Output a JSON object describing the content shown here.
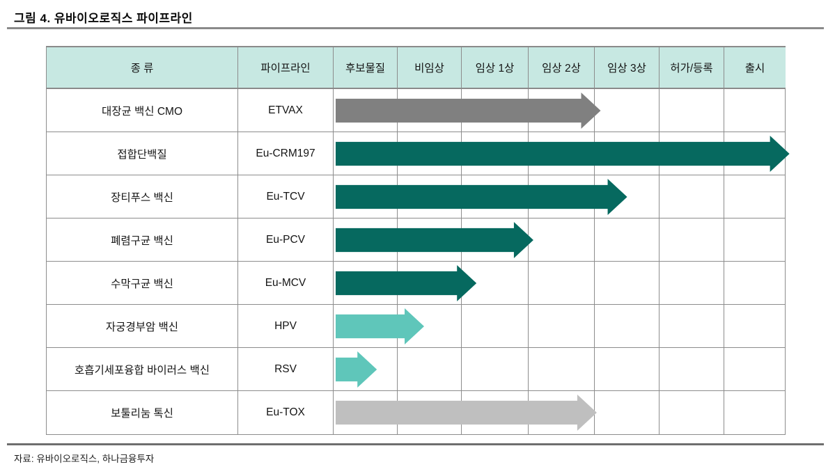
{
  "figure": {
    "title": "그림 4. 유바이오로직스 파이프라인",
    "source": "자료: 유바이오로직스, 하나금융투자"
  },
  "table": {
    "headers": [
      "종 류",
      "파이프라인",
      "후보물질",
      "비임상",
      "임상 1상",
      "임상 2상",
      "임상 3상",
      "허가/등록",
      "출시"
    ]
  },
  "colors": {
    "header_bg": "#C7E8E2",
    "grid": "#8C8C8C",
    "dark_teal": "#06695F",
    "light_teal": "#5FC6BA",
    "gray": "#808080",
    "light_gray": "#BFBFBF"
  },
  "chart_data": {
    "type": "gantt",
    "title": "유바이오로직스 파이프라인",
    "stages": [
      "후보물질",
      "비임상",
      "임상 1상",
      "임상 2상",
      "임상 3상",
      "허가/등록",
      "출시"
    ],
    "stage_axis_units": 7,
    "rows": [
      {
        "category": "대장균 백신 CMO",
        "pipeline": "ETVAX",
        "color": "gray",
        "end_stage_units": 4.13,
        "reached_stage": "임상 3상"
      },
      {
        "category": "접합단백질",
        "pipeline": "Eu-CRM197",
        "color": "dark_teal",
        "end_stage_units": 7.05,
        "reached_stage": "출시"
      },
      {
        "category": "장티푸스 백신",
        "pipeline": "Eu-TCV",
        "color": "dark_teal",
        "end_stage_units": 4.54,
        "reached_stage": "임상 3상"
      },
      {
        "category": "폐렴구균 백신",
        "pipeline": "Eu-PCV",
        "color": "dark_teal",
        "end_stage_units": 3.09,
        "reached_stage": "임상 2상"
      },
      {
        "category": "수막구균 백신",
        "pipeline": "Eu-MCV",
        "color": "dark_teal",
        "end_stage_units": 2.21,
        "reached_stage": "임상 1상"
      },
      {
        "category": "자궁경부암 백신",
        "pipeline": "HPV",
        "color": "light_teal",
        "end_stage_units": 1.4,
        "reached_stage": "비임상"
      },
      {
        "category": "호흡기세포융합 바이러스 백신",
        "pipeline": "RSV",
        "color": "light_teal",
        "end_stage_units": 0.67,
        "reached_stage": "후보물질"
      },
      {
        "category": "보툴리눔 톡신",
        "pipeline": "Eu-TOX",
        "color": "light_gray",
        "end_stage_units": 4.07,
        "reached_stage": "임상 3상"
      }
    ]
  }
}
